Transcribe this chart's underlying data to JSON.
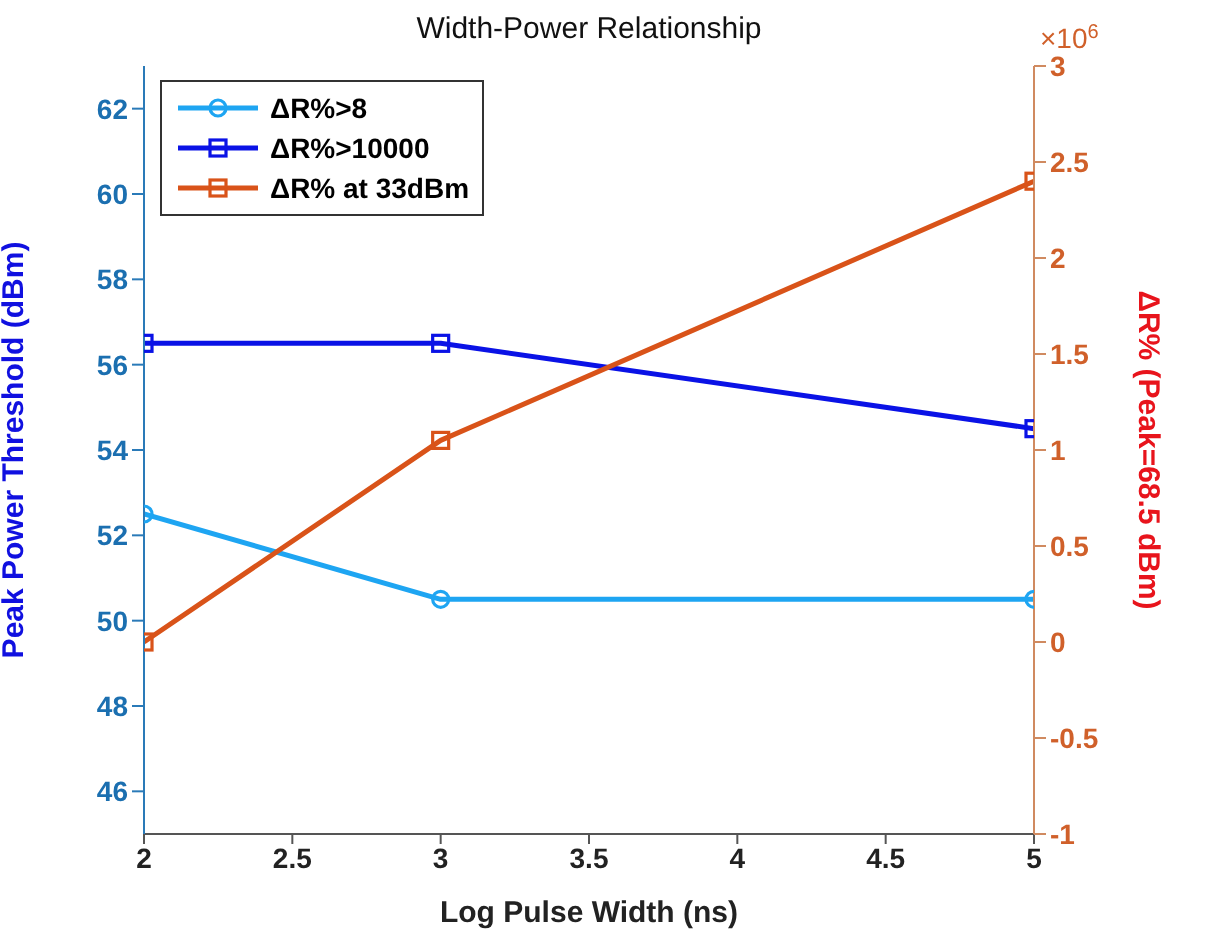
{
  "chart_data": {
    "type": "line",
    "title": "Width-Power Relationship",
    "xlabel": "Log Pulse Width (ns)",
    "ylabel": "Peak Power Threshold (dBm)",
    "y2label": "ΔR% (Peak=68.5 dBm)",
    "annotations": [
      "×10$^{6}$"
    ],
    "x": [
      2,
      3,
      5
    ],
    "series": [
      {
        "name": "ΔR%>8",
        "color": "#1ea5f2",
        "values": [
          52.5,
          50.5,
          50.5
        ],
        "marker": "circle"
      },
      {
        "name": "ΔR%>10000",
        "color": "#0a12e6",
        "values": [
          56.5,
          56.5,
          54.5
        ],
        "marker": "square"
      },
      {
        "name": "ΔR% at 33dBm",
        "color": "#d95319",
        "values": [
          0,
          1.05,
          2.4
        ],
        "marker": "square",
        "axis": "y2"
      }
    ],
    "xlim": [
      2,
      5
    ],
    "xticks": [
      2,
      2.5,
      3,
      3.5,
      4,
      4.5,
      5
    ],
    "ylim": [
      45,
      63
    ],
    "yticks": [
      46,
      48,
      50,
      52,
      54,
      56,
      58,
      60,
      62
    ],
    "y2lim": [
      -1,
      3
    ],
    "y2ticks": [
      -1,
      -0.5,
      0,
      0.5,
      1,
      1.5,
      2,
      2.5,
      3
    ],
    "grid": false,
    "legend": "top left",
    "line_style": "solid"
  }
}
